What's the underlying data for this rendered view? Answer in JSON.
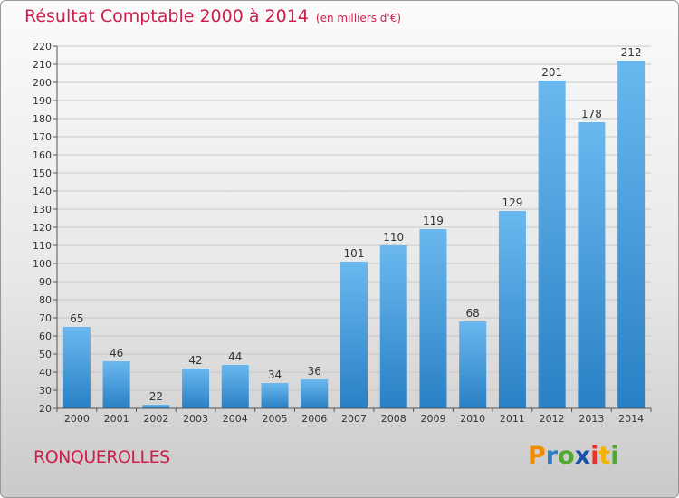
{
  "title": "Résultat Comptable 2000 à 2014",
  "subtitle": "(en milliers d'€)",
  "place": "RONQUEROLLES",
  "logo": {
    "letters": [
      "P",
      "r",
      "o",
      "x",
      "i",
      "t",
      "i"
    ],
    "colors": [
      "#f28c00",
      "#2a7fc8",
      "#52a82f",
      "#1a4fa5",
      "#e7332b",
      "#f2b400",
      "#52a82f"
    ]
  },
  "colors": {
    "bar_light": "#6ab8ef",
    "bar_dark": "#2a80c4",
    "grid": "#c8c8c8",
    "axis": "#555555"
  },
  "chart_data": {
    "type": "bar",
    "title": "Résultat Comptable 2000 à 2014",
    "xlabel": "",
    "ylabel": "",
    "categories": [
      "2000",
      "2001",
      "2002",
      "2003",
      "2004",
      "2005",
      "2006",
      "2007",
      "2008",
      "2009",
      "2010",
      "2011",
      "2012",
      "2013",
      "2014"
    ],
    "values": [
      65,
      46,
      22,
      42,
      44,
      34,
      36,
      101,
      110,
      119,
      68,
      129,
      201,
      178,
      212
    ],
    "ylim": [
      20,
      220
    ],
    "yticks": [
      20,
      30,
      40,
      50,
      60,
      70,
      80,
      90,
      100,
      110,
      120,
      130,
      140,
      150,
      160,
      170,
      180,
      190,
      200,
      210,
      220
    ],
    "grid": true
  }
}
